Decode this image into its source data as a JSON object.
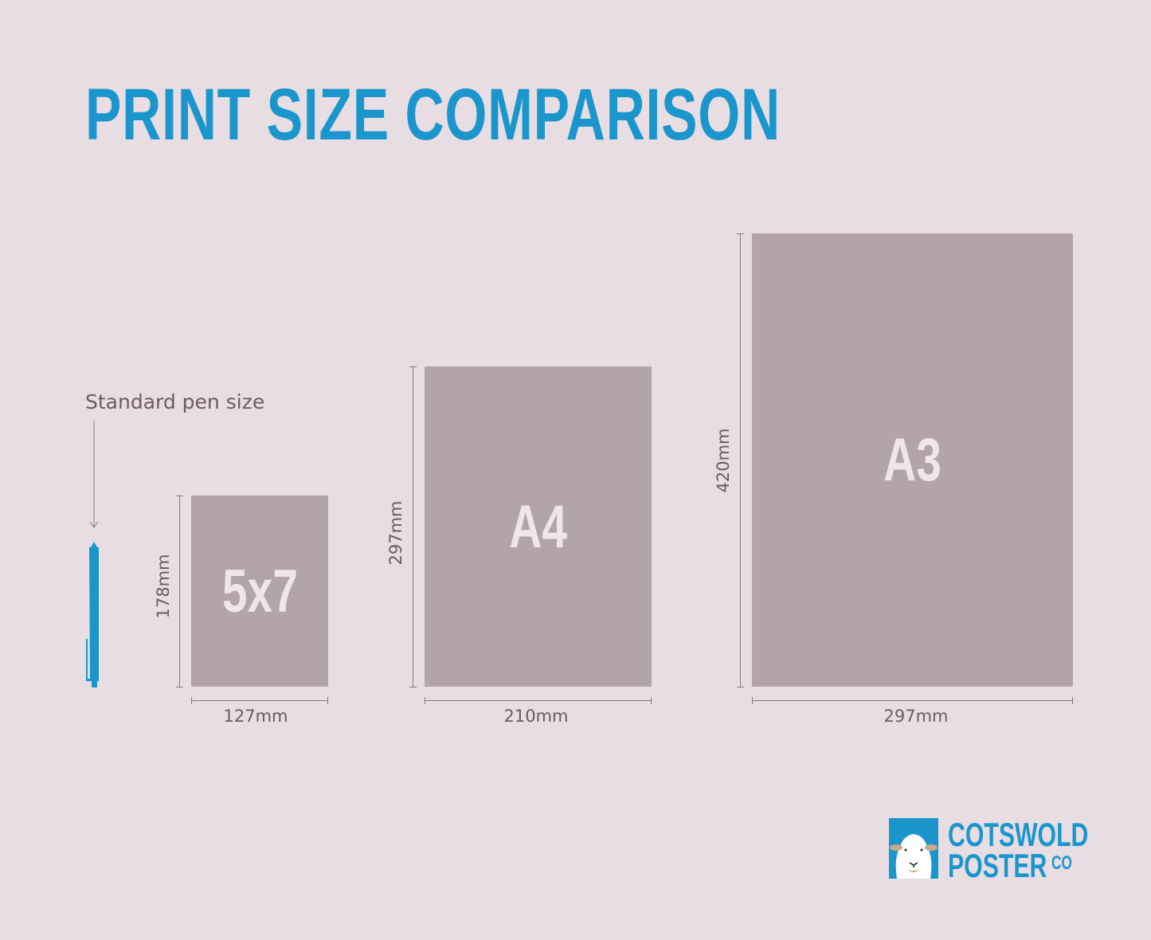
{
  "title": "PRINT SIZE COMPARISON",
  "pen": {
    "label": "Standard pen size"
  },
  "sizes": [
    {
      "name": "5x7",
      "width": "127mm",
      "height": "178mm"
    },
    {
      "name": "A4",
      "width": "210mm",
      "height": "297mm"
    },
    {
      "name": "A3",
      "width": "297mm",
      "height": "420mm"
    }
  ],
  "logo": {
    "line1": "COTSWOLD",
    "line2": "POSTER",
    "suffix": "CO"
  },
  "colors": {
    "background": "#e8dde3",
    "accent": "#1a96cc",
    "paper": "#b3a3aa",
    "text": "#6e5a64"
  }
}
